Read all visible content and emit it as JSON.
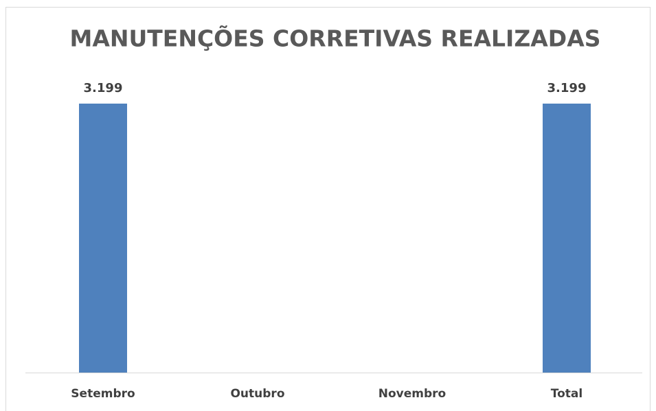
{
  "chart_data": {
    "type": "bar",
    "title": "MANUTENÇÕES CORRETIVAS REALIZADAS",
    "categories": [
      "Setembro",
      "Outubro",
      "Novembro",
      "Total"
    ],
    "values": [
      3199,
      null,
      null,
      3199
    ],
    "value_labels": [
      "3.199",
      null,
      null,
      "3.199"
    ],
    "color": "#4f81bd",
    "grid": false
  }
}
